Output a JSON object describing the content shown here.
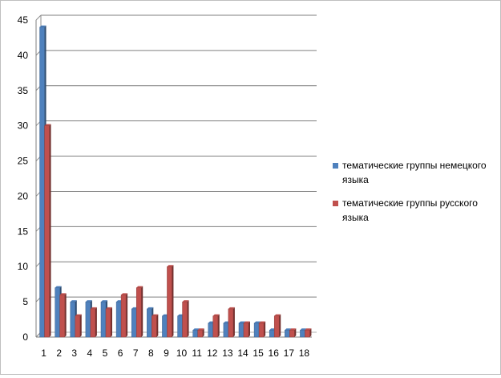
{
  "chart_data": {
    "type": "bar",
    "categories": [
      "1",
      "2",
      "3",
      "4",
      "5",
      "6",
      "7",
      "8",
      "9",
      "10",
      "11",
      "12",
      "13",
      "14",
      "15",
      "16",
      "17",
      "18"
    ],
    "series": [
      {
        "name": "тематические группы немецкого языка",
        "color": "#4f81bd",
        "values": [
          44,
          7,
          5,
          5,
          5,
          5,
          4,
          4,
          3,
          3,
          1,
          2,
          2,
          2,
          2,
          1,
          1,
          1
        ]
      },
      {
        "name": "тематические группы русского языка",
        "color": "#c0504d",
        "values": [
          30,
          6,
          3,
          4,
          4,
          6,
          7,
          3,
          10,
          5,
          1,
          3,
          4,
          2,
          2,
          3,
          1,
          1
        ]
      }
    ],
    "yticks": [
      0,
      5,
      10,
      15,
      20,
      25,
      30,
      35,
      40,
      45
    ],
    "ylim": [
      0,
      45
    ],
    "grid": true,
    "legend_position": "right"
  }
}
